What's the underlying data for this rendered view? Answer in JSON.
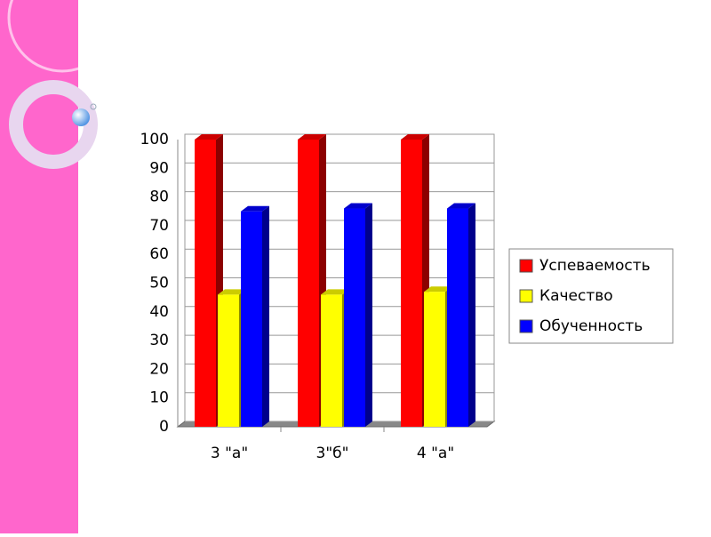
{
  "chart_data": {
    "type": "bar3d",
    "categories": [
      "3 \"а\"",
      "3\"б\"",
      "4 \"а\""
    ],
    "series": [
      {
        "name": "Успеваемость",
        "color": "#ff0000",
        "values": [
          100,
          100,
          100
        ]
      },
      {
        "name": "Качество",
        "color": "#ffff00",
        "values": [
          46,
          46,
          47
        ]
      },
      {
        "name": "Обученность",
        "color": "#0000ff",
        "values": [
          75,
          76,
          76
        ]
      }
    ],
    "ylim": [
      0,
      100
    ],
    "yticks": [
      0,
      10,
      20,
      30,
      40,
      50,
      60,
      70,
      80,
      90,
      100
    ],
    "grid": true,
    "legend": "right"
  }
}
